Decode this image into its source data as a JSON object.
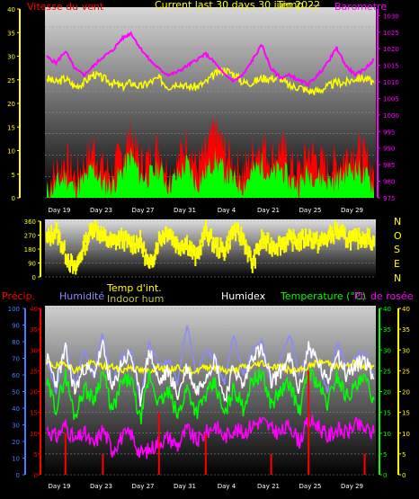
{
  "header": {
    "wind_title": "Vitesse du vent",
    "current_label": "Current last 30 days 30 juin 2022",
    "overlap_label": "Temp.",
    "separator": "---",
    "barometer_title": "Barometre"
  },
  "direction_letters": [
    "N",
    "O",
    "S",
    "E",
    "N"
  ],
  "lower_labels": {
    "precip": "Précip.",
    "humidity": "Humidité",
    "temp_int": "Temp d'int.",
    "indoor_hum": "Indoor hum",
    "humidex": "Humidex",
    "temperature": "Temperature (°C)",
    "dewpoint": "Pt. de rosée"
  },
  "colors": {
    "wind_gust": "#ff0000",
    "wind_speed": "#00ff00",
    "barometer": "#ff00ff",
    "temp_outline": "#ffff00",
    "direction": "#ffff00",
    "humidity": "#8a8aff",
    "temp_int": "#ffff00",
    "indoor_hum": "#c0c060",
    "humidex": "#ffffff",
    "temperature": "#00ff00",
    "dewpoint": "#ff00ff",
    "precip": "#ff0000",
    "axis_blue": "#4a7bff",
    "axis_yellow": "#ffff00"
  },
  "chart_data": [
    {
      "type": "line",
      "name": "wind-barometer",
      "x_tick_labels": [
        "Day 19",
        "Day 23",
        "Day 27",
        "Day 31",
        "Day 4",
        "Day 21",
        "Day 25",
        "Day 29"
      ],
      "left_axis": {
        "label": "Vitesse du vent",
        "ticks": [
          0,
          5,
          10,
          15,
          20,
          25,
          30,
          35,
          40
        ],
        "ylim": [
          0,
          40
        ]
      },
      "right_axis": {
        "label": "Barometre",
        "ticks": [
          975,
          980,
          985,
          990,
          995,
          1000,
          1005,
          1010,
          1015,
          1020,
          1025,
          1030
        ],
        "ylim": [
          975,
          1032
        ]
      },
      "series": [
        {
          "name": "Barometre",
          "axis": "right",
          "values": [
            1022,
            1020,
            1024,
            1018,
            1016,
            1019,
            1022,
            1024,
            1028,
            1030,
            1025,
            1021,
            1018,
            1016,
            1017,
            1019,
            1021,
            1023,
            1020,
            1016,
            1014,
            1016,
            1021,
            1026,
            1018,
            1015,
            1016,
            1014,
            1013,
            1016,
            1020,
            1025,
            1019,
            1016,
            1018,
            1021
          ]
        }
      ],
      "gust_values": [
        3,
        6,
        9,
        5,
        8,
        12,
        7,
        6,
        10,
        15,
        8,
        9,
        12,
        6,
        8,
        14,
        7,
        10,
        16,
        11,
        8,
        6,
        10,
        13,
        9,
        12,
        8,
        6,
        11,
        9,
        7,
        8,
        10,
        12,
        9,
        7
      ],
      "speed_values": [
        1,
        3,
        5,
        2,
        4,
        7,
        3,
        3,
        6,
        10,
        5,
        5,
        7,
        3,
        5,
        8,
        3,
        6,
        9,
        6,
        4,
        3,
        6,
        8,
        5,
        7,
        4,
        3,
        6,
        5,
        4,
        4,
        6,
        7,
        5,
        3
      ],
      "temp_overlay": [
        28,
        27,
        28,
        26,
        27,
        29,
        28,
        27,
        26,
        27,
        26,
        27,
        28,
        26,
        27,
        26,
        26,
        27,
        29,
        30,
        29,
        27,
        27,
        28,
        28,
        28,
        26,
        26,
        25,
        25,
        26,
        27,
        27,
        28,
        28,
        27
      ]
    },
    {
      "type": "line",
      "name": "wind-direction",
      "left_axis": {
        "ticks": [
          0,
          90,
          180,
          270,
          360
        ],
        "ylim": [
          0,
          360
        ]
      },
      "values": [
        240,
        300,
        150,
        40,
        200,
        330,
        260,
        220,
        250,
        210,
        230,
        60,
        240,
        300,
        200,
        220,
        120,
        300,
        200,
        170,
        300,
        250,
        80,
        240,
        200,
        210,
        240,
        230,
        260,
        220,
        250,
        300,
        250,
        240,
        260,
        230
      ]
    },
    {
      "type": "line",
      "name": "temp-humidity",
      "x_tick_labels": [
        "Day 19",
        "Day 23",
        "Day 27",
        "Day 31",
        "Day 4",
        "Day 21",
        "Day 25",
        "Day 29"
      ],
      "left_axis_humidity": {
        "ticks": [
          0,
          10,
          20,
          30,
          40,
          50,
          60,
          70,
          80,
          90,
          100
        ],
        "ylim": [
          0,
          100
        ]
      },
      "left_axis_precip": {
        "ticks": [
          0,
          5,
          10,
          15,
          20,
          25,
          30,
          35,
          40
        ],
        "ylim": [
          0,
          40
        ]
      },
      "right_axis_temp": {
        "ticks": [
          0,
          5,
          10,
          15,
          20,
          25,
          30,
          35,
          40
        ],
        "ylim": [
          0,
          40
        ]
      },
      "right_axis_yellow": {
        "ticks": [
          0,
          5,
          10,
          15,
          20,
          25,
          30,
          35,
          40
        ],
        "ylim": [
          0,
          40
        ]
      },
      "series": [
        {
          "name": "Humidité",
          "axis": "humidity",
          "values": [
            70,
            50,
            80,
            55,
            75,
            60,
            85,
            55,
            70,
            75,
            45,
            80,
            65,
            70,
            55,
            90,
            60,
            75,
            70,
            55,
            85,
            60,
            75,
            80,
            55,
            70,
            85,
            60,
            75,
            70,
            50,
            80,
            65,
            70,
            75,
            60
          ]
        },
        {
          "name": "Temp d'int.",
          "axis": "temp",
          "values": [
            27,
            26,
            27,
            25,
            26,
            27,
            26,
            26,
            25,
            26,
            25,
            25,
            26,
            25,
            26,
            25,
            25,
            26,
            26,
            25,
            25,
            26,
            26,
            27,
            26,
            26,
            25,
            25,
            26,
            27,
            27,
            26,
            26,
            27,
            26,
            26
          ]
        },
        {
          "name": "Humidex",
          "axis": "temp",
          "values": [
            28,
            22,
            30,
            20,
            26,
            24,
            31,
            20,
            27,
            29,
            18,
            30,
            22,
            25,
            19,
            26,
            20,
            24,
            28,
            18,
            26,
            21,
            29,
            30,
            22,
            25,
            28,
            20,
            31,
            27,
            22,
            30,
            24,
            26,
            28,
            23
          ]
        },
        {
          "name": "Temperature (°C)",
          "axis": "temp",
          "values": [
            22,
            16,
            24,
            14,
            21,
            18,
            25,
            15,
            22,
            23,
            13,
            24,
            17,
            20,
            14,
            21,
            15,
            19,
            22,
            14,
            21,
            16,
            23,
            24,
            17,
            20,
            22,
            15,
            25,
            22,
            17,
            24,
            19,
            21,
            23,
            18
          ]
        },
        {
          "name": "Pt. de rosée",
          "axis": "temp",
          "values": [
            11,
            9,
            12,
            8,
            10,
            7,
            11,
            6,
            9,
            10,
            5,
            6,
            8,
            9,
            7,
            11,
            8,
            10,
            12,
            9,
            11,
            10,
            12,
            13,
            11,
            10,
            12,
            8,
            13,
            12,
            9,
            11,
            10,
            12,
            11,
            10
          ]
        },
        {
          "name": "Précip.",
          "axis": "precip",
          "values": [
            0,
            0,
            10,
            0,
            0,
            0,
            5,
            0,
            0,
            0,
            0,
            0,
            15,
            0,
            0,
            0,
            0,
            10,
            0,
            0,
            0,
            0,
            0,
            0,
            5,
            0,
            0,
            0,
            25,
            0,
            0,
            0,
            0,
            0,
            5,
            0
          ]
        }
      ]
    }
  ]
}
